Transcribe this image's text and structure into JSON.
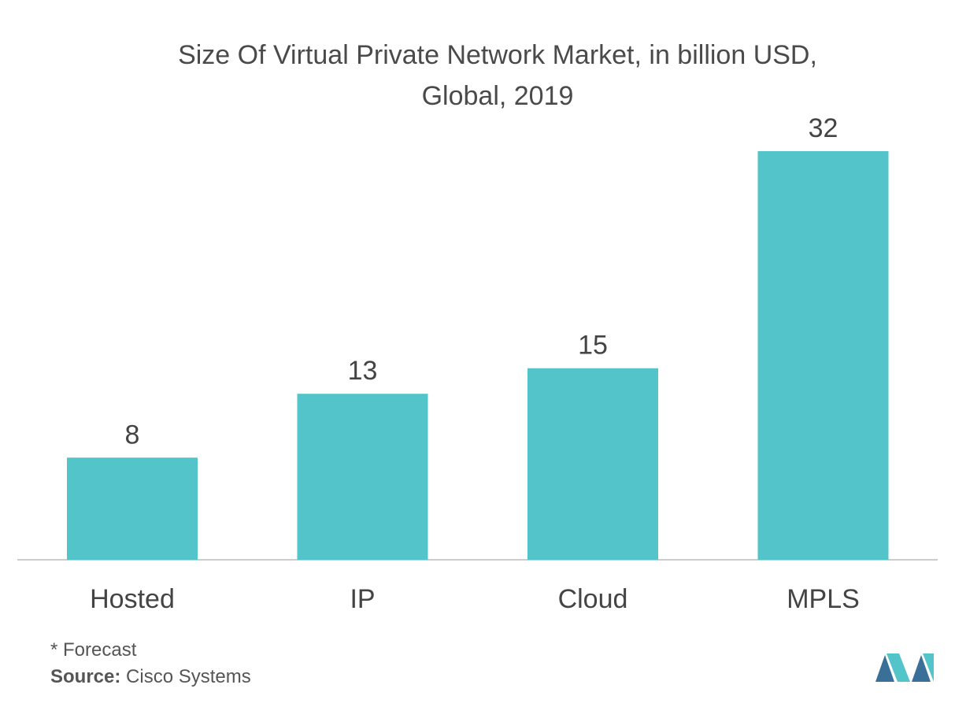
{
  "chart_data": {
    "type": "bar",
    "title": "Size Of Virtual Private Network Market, in billion USD,",
    "subtitle": "Global, 2019",
    "categories": [
      "Hosted",
      "IP",
      "Cloud",
      "MPLS"
    ],
    "values": [
      8,
      13,
      15,
      32
    ],
    "data_labels": [
      "8",
      "13",
      "15",
      "32"
    ],
    "ylim": [
      0,
      32
    ],
    "grid": false,
    "legend": "none",
    "bar_color": "#53c4c9"
  },
  "footnote": "* Forecast",
  "source": {
    "label": "Source:",
    "text": " Cisco Systems"
  },
  "colors": {
    "logo_dark": "#3a6f97",
    "logo_light": "#53c4c9"
  }
}
